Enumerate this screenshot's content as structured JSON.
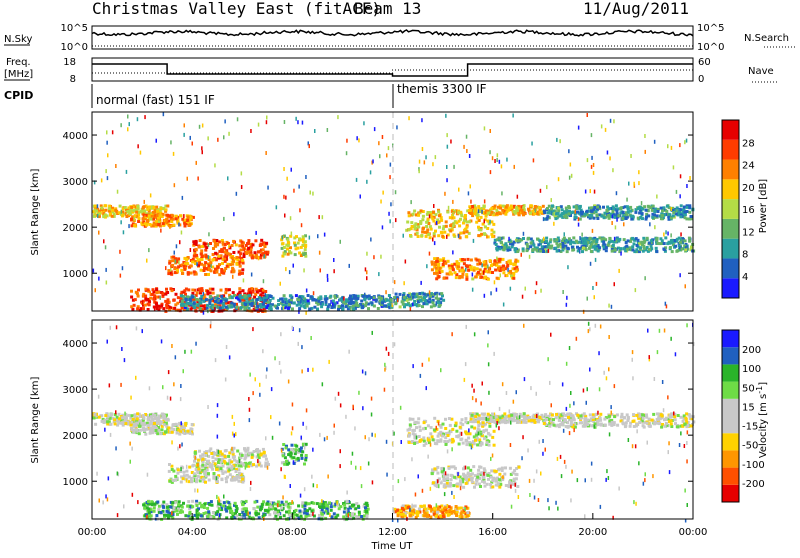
{
  "header": {
    "station": "Christmas Valley East (fitACF)",
    "beam": "Beam 13",
    "date": "11/Aug/2011"
  },
  "status": {
    "nsky_label": "N.Sky",
    "nsky_tick_top": "10^5",
    "nsky_tick_bottom": "10^0",
    "nsearch_label": "N.Search",
    "nsearch_tick_top": "10^5",
    "nsearch_tick_bottom": "10^0",
    "freq_label_1": "Freq.",
    "freq_label_2": "[MHz]",
    "freq_tick_top": "18",
    "freq_tick_bottom": "8",
    "nave_label": "Nave",
    "nave_tick_top": "60",
    "nave_tick_bottom": "0",
    "cpid_label": "CPID",
    "cpid_mode_1": "normal (fast) 151 IF",
    "cpid_mode_2": "themis 3300 IF"
  },
  "colors": {
    "power": [
      "#1a1aff",
      "#2060c0",
      "#2aa0a0",
      "#66b466",
      "#b4dc46",
      "#ffc800",
      "#ff8000",
      "#ff3c00",
      "#e60000"
    ],
    "velocity": [
      "#e60000",
      "#ff5000",
      "#ff9600",
      "#ffd200",
      "#c8c8c8",
      "#c8c8c8",
      "#6edc46",
      "#2ab42a",
      "#2060c0",
      "#1a1aff"
    ]
  },
  "chart_data": [
    {
      "type": "heatmap",
      "panel": "power",
      "ylabel": "Slant Range [km]",
      "ylim": [
        180,
        4500
      ],
      "yticks": [
        "1000",
        "2000",
        "3000",
        "4000"
      ],
      "colorbar_label": "Power [dB]",
      "colorbar_range": [
        0,
        32
      ],
      "colorbar_ticks": [
        "4",
        "8",
        "12",
        "16",
        "20",
        "24",
        "28"
      ],
      "features": [
        {
          "t0": 0.0,
          "t1": 3.0,
          "r0": 2250,
          "r1": 2500,
          "level": 0.6
        },
        {
          "t0": 1.5,
          "t1": 4.0,
          "r0": 2050,
          "r1": 2300,
          "level": 0.7
        },
        {
          "t0": 4.0,
          "t1": 7.0,
          "r0": 1350,
          "r1": 1750,
          "level": 0.8
        },
        {
          "t0": 3.0,
          "t1": 6.0,
          "r0": 1000,
          "r1": 1400,
          "level": 0.75
        },
        {
          "t0": 7.5,
          "t1": 8.5,
          "r0": 1400,
          "r1": 1850,
          "level": 0.55
        },
        {
          "t0": 1.5,
          "t1": 7.0,
          "r0": 200,
          "r1": 700,
          "level": 0.85
        },
        {
          "t0": 12.5,
          "t1": 16.0,
          "r0": 1800,
          "r1": 2400,
          "level": 0.6
        },
        {
          "t0": 15.0,
          "t1": 18.0,
          "r0": 2300,
          "r1": 2500,
          "level": 0.65
        },
        {
          "t0": 13.5,
          "t1": 17.0,
          "r0": 900,
          "r1": 1350,
          "level": 0.7
        },
        {
          "t0": 16.0,
          "t1": 24.0,
          "r0": 1500,
          "r1": 1800,
          "level": 0.3
        },
        {
          "t0": 18.0,
          "t1": 24.0,
          "r0": 2200,
          "r1": 2500,
          "level": 0.3
        },
        {
          "t0": 3.5,
          "t1": 12.0,
          "r0": 250,
          "r1": 550,
          "level": 0.25
        },
        {
          "t0": 12.0,
          "t1": 14.0,
          "r0": 300,
          "r1": 600,
          "level": 0.3
        }
      ]
    },
    {
      "type": "heatmap",
      "panel": "velocity",
      "ylabel": "Slant Range [km]",
      "xlabel": "Time UT",
      "ylim": [
        180,
        4500
      ],
      "yticks": [
        "1000",
        "2000",
        "3000",
        "4000"
      ],
      "xlim": [
        0,
        24
      ],
      "xticks": [
        "00:00",
        "04:00",
        "08:00",
        "12:00",
        "16:00",
        "20:00",
        "00:00"
      ],
      "colorbar_label": "Velocity [m s^-1]",
      "colorbar_range": [
        -250,
        250
      ],
      "colorbar_ticks": [
        "200",
        "100",
        "50",
        "15",
        "-15",
        "-50",
        "-100",
        "-200"
      ],
      "features": [
        {
          "t0": 0.0,
          "t1": 3.0,
          "r0": 2250,
          "r1": 2500,
          "level": 0.5
        },
        {
          "t0": 1.5,
          "t1": 4.0,
          "r0": 2050,
          "r1": 2300,
          "level": 0.5
        },
        {
          "t0": 4.0,
          "t1": 7.0,
          "r0": 1350,
          "r1": 1750,
          "level": 0.5
        },
        {
          "t0": 3.0,
          "t1": 6.0,
          "r0": 1000,
          "r1": 1400,
          "level": 0.5
        },
        {
          "t0": 7.5,
          "t1": 8.5,
          "r0": 1400,
          "r1": 1850,
          "level": 0.72
        },
        {
          "t0": 2.0,
          "t1": 11.0,
          "r0": 200,
          "r1": 600,
          "level": 0.7
        },
        {
          "t0": 12.5,
          "t1": 16.0,
          "r0": 1800,
          "r1": 2400,
          "level": 0.5
        },
        {
          "t0": 15.0,
          "t1": 18.0,
          "r0": 2300,
          "r1": 2500,
          "level": 0.5
        },
        {
          "t0": 13.5,
          "t1": 17.0,
          "r0": 900,
          "r1": 1350,
          "level": 0.5
        },
        {
          "t0": 12.0,
          "t1": 15.0,
          "r0": 250,
          "r1": 500,
          "level": 0.3
        },
        {
          "t0": 18.0,
          "t1": 24.0,
          "r0": 2200,
          "r1": 2500,
          "level": 0.5
        }
      ]
    }
  ]
}
